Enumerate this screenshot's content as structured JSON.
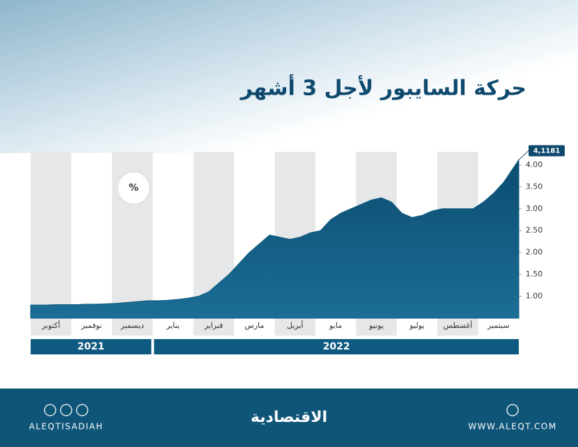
{
  "chart_data": {
    "type": "area",
    "title": "حركة السايبور لأجل 3 أشهر",
    "unit_badge": "%",
    "categories": [
      null,
      "أكتوبر",
      null,
      null,
      null,
      "نوفمبر",
      null,
      null,
      null,
      "ديسمبر",
      null,
      null,
      null,
      "يناير",
      null,
      null,
      null,
      "فبراير",
      null,
      null,
      null,
      "مارس",
      null,
      null,
      null,
      "أبريل",
      null,
      null,
      null,
      "مايو",
      null,
      null,
      null,
      "يونيو",
      null,
      null,
      null,
      "يوليو",
      null,
      null,
      null,
      "أغسطس",
      null,
      null,
      null,
      "سبتمبر",
      null,
      null
    ],
    "values": [
      0.8,
      0.8,
      0.81,
      0.81,
      0.81,
      0.82,
      0.82,
      0.83,
      0.84,
      0.86,
      0.88,
      0.9,
      0.9,
      0.91,
      0.93,
      0.96,
      1.0,
      1.1,
      1.3,
      1.5,
      1.75,
      2.0,
      2.2,
      2.4,
      2.35,
      2.3,
      2.35,
      2.45,
      2.5,
      2.75,
      2.9,
      3.0,
      3.1,
      3.2,
      3.25,
      3.15,
      2.9,
      2.8,
      2.85,
      2.95,
      3.0,
      3.0,
      3.0,
      3.0,
      3.15,
      3.35,
      3.6,
      4.1181
    ],
    "value_labels": [
      null,
      null,
      null,
      null,
      null,
      null,
      null,
      null,
      null,
      null,
      null,
      null,
      null,
      null,
      null,
      null,
      null,
      null,
      null,
      null,
      null,
      null,
      null,
      null,
      null,
      null,
      null,
      null,
      null,
      null,
      null,
      null,
      null,
      null,
      null,
      null,
      null,
      null,
      null,
      null,
      null,
      null,
      null,
      null,
      null,
      null,
      null,
      "4,1181"
    ],
    "color": "#0f5a80",
    "ylim": [
      0.5,
      4.3
    ],
    "yticks": [
      {
        "value": 1,
        "label": "1.00"
      },
      {
        "value": 1.5,
        "label": "1.50"
      },
      {
        "value": 2,
        "label": "2.00"
      },
      {
        "value": 2.5,
        "label": "2.50"
      },
      {
        "value": 3,
        "label": "3.00"
      },
      {
        "value": 3.5,
        "label": "3.50"
      },
      {
        "value": 4,
        "label": "4.00"
      }
    ],
    "years": [
      "2021",
      "2022"
    ]
  },
  "footer": {
    "handle": "ALEQTISADIAH",
    "brand": "الاقتصادية",
    "website": "WWW.ALEQT.COM"
  }
}
